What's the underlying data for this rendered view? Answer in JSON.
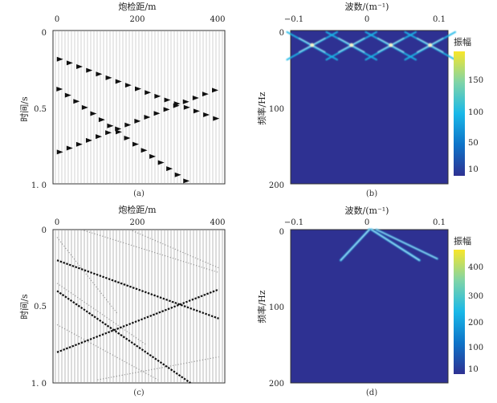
{
  "chart_data": [
    {
      "id": "a",
      "type": "scatter",
      "title": "炮检距/m",
      "xlabel": "炮检距/m",
      "ylabel": "时间/s",
      "xlim": [
        -10,
        415
      ],
      "ylim": [
        1.0,
        0
      ],
      "x_ticks": [
        "0",
        "200",
        "400"
      ],
      "y_ticks": [
        "0",
        "0.5",
        "1. 0"
      ],
      "caption": "(a)",
      "series": [
        {
          "values": [
            [
              0,
              0.18
            ],
            [
              400,
              0.58
            ]
          ]
        },
        {
          "values": [
            [
              0,
              0.37
            ],
            [
              330,
              1.0
            ]
          ]
        },
        {
          "values": [
            [
              0,
              0.8
            ],
            [
              400,
              0.38
            ]
          ]
        }
      ]
    },
    {
      "id": "b",
      "type": "heatmap",
      "title": "波数/(m⁻¹)",
      "xlabel": "波数/(m⁻¹)",
      "ylabel": "频率/Hz",
      "xlim": [
        -0.11,
        0.11
      ],
      "ylim": [
        200,
        0
      ],
      "x_ticks": [
        "−0.1",
        "0",
        "0.1"
      ],
      "y_ticks": [
        "0",
        "100",
        "200"
      ],
      "colorbar": {
        "label": "振幅",
        "ticks": [
          "150",
          "100",
          "50",
          "10"
        ],
        "range": [
          10,
          190
        ]
      },
      "caption": "(b)"
    },
    {
      "id": "c",
      "type": "scatter",
      "title": "炮检距/m",
      "xlabel": "炮检距/m",
      "ylabel": "时间/s",
      "xlim": [
        -10,
        415
      ],
      "ylim": [
        1.0,
        0
      ],
      "x_ticks": [
        "0",
        "200",
        "400"
      ],
      "y_ticks": [
        "0",
        "0.5",
        "1. 0"
      ],
      "caption": "(c)",
      "series": [
        {
          "values": [
            [
              0,
              0.2
            ],
            [
              400,
              0.58
            ]
          ]
        },
        {
          "values": [
            [
              0,
              0.4
            ],
            [
              330,
              1.0
            ]
          ]
        },
        {
          "values": [
            [
              0,
              0.8
            ],
            [
              400,
              0.39
            ]
          ]
        }
      ]
    },
    {
      "id": "d",
      "type": "heatmap",
      "title": "波数/(m⁻¹)",
      "xlabel": "波数/(m⁻¹)",
      "ylabel": "频率/Hz",
      "xlim": [
        -0.11,
        0.11
      ],
      "ylim": [
        200,
        0
      ],
      "x_ticks": [
        "−0.1",
        "0",
        "0.1"
      ],
      "y_ticks": [
        "0",
        "100",
        "200"
      ],
      "colorbar": {
        "label": "振幅",
        "ticks": [
          "400",
          "300",
          "200",
          "100",
          "10"
        ],
        "range": [
          10,
          470
        ]
      },
      "caption": "(d)"
    }
  ],
  "colors": {
    "background": "#2e3192",
    "yellow": "#f8e62a",
    "cyan": "#19b8e8",
    "event": "#111111"
  }
}
